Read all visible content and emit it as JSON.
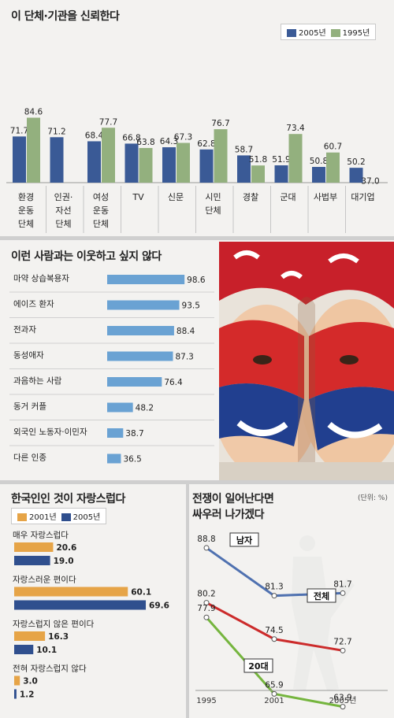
{
  "colors": {
    "dark_blue": "#3a5a96",
    "sage_green": "#93b07e",
    "light_blue": "#6aa2d3",
    "orange": "#e6a447",
    "navy": "#2f4f8e",
    "line_male": "#4f71b0",
    "line_total": "#cc2b2b",
    "line_20s": "#75b53e"
  },
  "chart_data": [
    {
      "type": "bar",
      "title": "이 단체·기관을 신뢰한다",
      "categories": [
        [
          "환경",
          "운동",
          "단체"
        ],
        [
          "인권·",
          "자선",
          "단체"
        ],
        [
          "여성",
          "운동",
          "단체"
        ],
        [
          "TV"
        ],
        [
          "신문"
        ],
        [
          "시민",
          "단체"
        ],
        [
          "경찰"
        ],
        [
          "군대"
        ],
        [
          "사법부"
        ],
        [
          "대기업"
        ]
      ],
      "series": [
        {
          "name": "2005년",
          "values": [
            71.7,
            71.2,
            68.4,
            66.8,
            64.3,
            62.8,
            58.7,
            51.9,
            50.8,
            50.2
          ]
        },
        {
          "name": "1995년",
          "values": [
            84.6,
            null,
            77.7,
            63.8,
            67.3,
            76.7,
            51.8,
            73.4,
            60.7,
            37.0
          ]
        }
      ],
      "value_labels": {
        "2005년": [
          "71.7",
          "71.2",
          "68.4",
          "66.8",
          "64.3",
          "62.8",
          "58.7",
          "51.9",
          "50.8",
          "50.2"
        ],
        "1995년": [
          "84.6",
          "",
          "77.7",
          "63.8",
          "67.3",
          "76.7",
          "51.8",
          "73.4",
          "60.7",
          "37.0"
        ]
      },
      "legend_position": "top-right"
    },
    {
      "type": "bar",
      "orientation": "horizontal",
      "title": "이런 사람과는 이웃하고 싶지 않다",
      "categories": [
        "마약 상습복용자",
        "에이즈 환자",
        "전과자",
        "동성애자",
        "과음하는 사람",
        "동거 커플",
        "외국인 노동자·이민자",
        "다른 인종"
      ],
      "values": [
        98.6,
        93.5,
        88.4,
        87.3,
        76.4,
        48.2,
        38.7,
        36.5
      ],
      "labels": [
        "98.6",
        "93.5",
        "88.4",
        "87.3",
        "76.4",
        "48.2",
        "38.7",
        "36.5"
      ]
    },
    {
      "type": "bar",
      "orientation": "horizontal",
      "title": "한국인인 것이 자랑스럽다",
      "categories": [
        "매우 자랑스럽다",
        "자랑스러운 편이다",
        "자랑스럽지 않은 편이다",
        "전혀 자랑스럽지 않다"
      ],
      "series": [
        {
          "name": "2001년",
          "values": [
            20.6,
            60.1,
            16.3,
            3.0
          ]
        },
        {
          "name": "2005년",
          "values": [
            19.0,
            69.6,
            10.1,
            1.2
          ]
        }
      ],
      "value_labels": {
        "2001년": [
          "20.6",
          "60.1",
          "16.3",
          "3.0"
        ],
        "2005년": [
          "19.0",
          "69.6",
          "10.1",
          "1.2"
        ]
      },
      "legend_position": "top-left"
    },
    {
      "type": "line",
      "title": [
        "전쟁이 일어난다면",
        "싸우러 나가겠다"
      ],
      "unit": "(단위: %)",
      "x": [
        "1995",
        "2001",
        "2005년"
      ],
      "series": [
        {
          "name": "남자",
          "values": [
            88.8,
            81.3,
            81.7
          ],
          "labels": [
            "88.8",
            "81.3",
            "81.7"
          ]
        },
        {
          "name": "전체",
          "values": [
            80.2,
            74.5,
            72.7
          ],
          "labels": [
            "80.2",
            "74.5",
            "72.7"
          ]
        },
        {
          "name": "20대",
          "values": [
            77.9,
            65.9,
            63.9
          ],
          "labels": [
            "77.9",
            "65.9",
            "63.9"
          ]
        }
      ]
    }
  ]
}
